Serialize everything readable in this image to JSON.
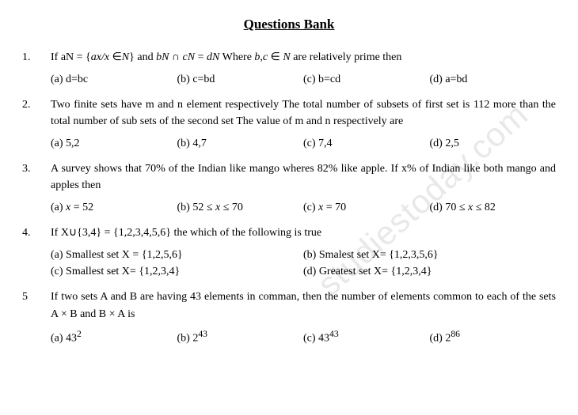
{
  "title": "Questions Bank",
  "watermark": "studiestoday.com",
  "questions": [
    {
      "num": "1.",
      "text": "If aN = {<span class='italic'>ax/x</span> ∈<span class='italic'>N</span>} and <span class='italic'>bN</span> ∩ <span class='italic'>cN</span> = <span class='italic'>dN</span> Where <span class='italic'>b,c</span> ∈ <span class='italic'>N</span> are relatively prime then",
      "opts": [
        "(a) d=bc",
        "(b) c=bd",
        "(c) b=cd",
        "(d) a=bd"
      ],
      "cols": 4
    },
    {
      "num": "2.",
      "text": "Two finite sets have m and n element respectively The total number of subsets of first set is 112 more than the total number of sub sets of the second set The value of m and n respectively are",
      "opts": [
        "(a) 5,2",
        "(b) 4,7",
        "(c) 7,4",
        "(d) 2,5"
      ],
      "cols": 4
    },
    {
      "num": "3.",
      "text": "A survey shows that 70% of the Indian like mango wheres 82% like apple. If x% of Indian like both mango and apples then",
      "opts": [
        "(a) <span class='italic'>x</span> = 52",
        "(b) 52 ≤ <span class='italic'>x</span> ≤ 70",
        "(c) <span class='italic'>x</span> = 70",
        "(d) 70 ≤ <span class='italic'>x</span> ≤ 82"
      ],
      "cols": 4
    },
    {
      "num": "4.",
      "text": "If X∪{3,4} = {1,2,3,4,5,6} the which of the following is true",
      "opts": [
        "(a) Smallest set X = {1,2,5,6}",
        "(b) Smalest set X= {1,2,3,5,6}",
        "(c) Smallest set X= {1,2,3,4}",
        "(d) Greatest set X= {1,2,3,4}"
      ],
      "cols": 2
    },
    {
      "num": "5",
      "text": "If two sets A and B are having 43 elements in comman, then the number of elements common to each of the sets A × B and B × A is",
      "opts": [
        "(a) 43<sup>2</sup>",
        "(b) 2<sup>43</sup>",
        "(c) 43<sup>43</sup>",
        "(d) 2<sup>86</sup>"
      ],
      "cols": 4
    }
  ]
}
